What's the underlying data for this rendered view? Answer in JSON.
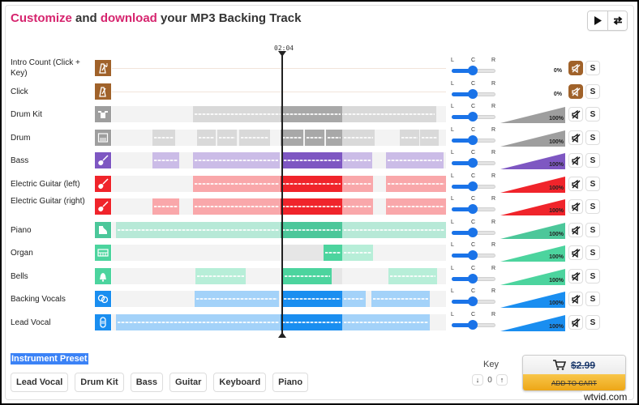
{
  "header": {
    "title_parts": [
      {
        "text": "Customize",
        "highlight": true
      },
      {
        "text": " and ",
        "highlight": false
      },
      {
        "text": "download",
        "highlight": true
      },
      {
        "text": " your MP3 Backing Track",
        "highlight": false
      }
    ],
    "highlight_color": "#d6246e"
  },
  "transport": {
    "play_icon": "play-icon",
    "loop_icon": "loop-arrows-icon"
  },
  "playhead": {
    "time": "02:04"
  },
  "pan_labels": {
    "l": "L",
    "c": "C",
    "r": "R"
  },
  "tracks": [
    {
      "label": "Intro Count (Click + Key)",
      "icon": "metronome-note-icon",
      "color": "#a0622a",
      "volume": "0%",
      "muted": true,
      "solo": "S"
    },
    {
      "label": "Click",
      "icon": "metronome-icon",
      "color": "#a0622a",
      "volume": "0%",
      "muted": true,
      "solo": "S"
    },
    {
      "label": "Drum Kit",
      "icon": "drum-kit-icon",
      "color": "#9e9e9e",
      "volume": "100%",
      "muted": false,
      "solo": "S"
    },
    {
      "label": "Drum",
      "icon": "drum-machine-icon",
      "color": "#9e9e9e",
      "volume": "100%",
      "muted": false,
      "solo": "S"
    },
    {
      "label": "Bass",
      "icon": "bass-guitar-icon",
      "color": "#7e57c2",
      "volume": "100%",
      "muted": false,
      "solo": "S"
    },
    {
      "label": "Electric Guitar (left)",
      "icon": "electric-guitar-icon",
      "color": "#f0242b",
      "volume": "100%",
      "muted": false,
      "solo": "S"
    },
    {
      "label": "Electric Guitar (right)",
      "icon": "electric-guitar-icon",
      "color": "#f0242b",
      "volume": "100%",
      "muted": false,
      "solo": "S"
    },
    {
      "label": "Piano",
      "icon": "grand-piano-icon",
      "color": "#4cc79a",
      "volume": "100%",
      "muted": false,
      "solo": "S"
    },
    {
      "label": "Organ",
      "icon": "organ-keyboard-icon",
      "color": "#4cd49e",
      "volume": "100%",
      "muted": false,
      "solo": "S"
    },
    {
      "label": "Bells",
      "icon": "bell-icon",
      "color": "#4cd49e",
      "volume": "100%",
      "muted": false,
      "solo": "S"
    },
    {
      "label": "Backing Vocals",
      "icon": "backing-vocals-icon",
      "color": "#1a8ef0",
      "volume": "100%",
      "muted": false,
      "solo": "S"
    },
    {
      "label": "Lead Vocal",
      "icon": "lead-vocal-icon",
      "color": "#1a8ef0",
      "volume": "100%",
      "muted": false,
      "solo": "S"
    }
  ],
  "preset": {
    "label": "Instrument Preset",
    "buttons": [
      "Lead Vocal",
      "Drum Kit",
      "Bass",
      "Guitar",
      "Keyboard",
      "Piano"
    ]
  },
  "key": {
    "label": "Key",
    "value": "0",
    "down_icon": "arrow-down-icon",
    "up_icon": "arrow-up-icon"
  },
  "cart": {
    "price": "$2.99",
    "label": "ADD TO CART"
  },
  "watermark": "wtvid.com"
}
